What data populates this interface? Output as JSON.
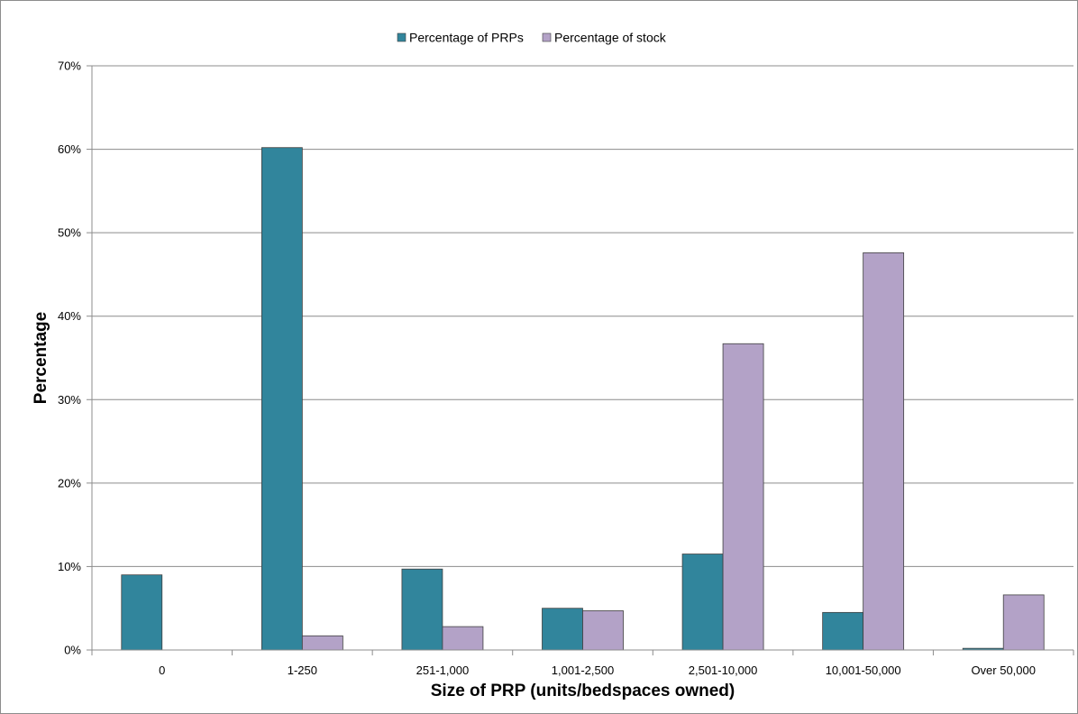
{
  "chart_data": {
    "type": "bar",
    "title": "",
    "xlabel": "Size of PRP (units/bedspaces owned)",
    "ylabel": "Percentage",
    "ylim": [
      0,
      70
    ],
    "y_ticks": [
      0,
      10,
      20,
      30,
      40,
      50,
      60,
      70
    ],
    "y_tick_labels": [
      "0%",
      "10%",
      "20%",
      "30%",
      "40%",
      "50%",
      "60%",
      "70%"
    ],
    "grid": "horizontal",
    "legend_position": "top-center",
    "categories": [
      "0",
      "1-250",
      "251-1,000",
      "1,001-2,500",
      "2,501-10,000",
      "10,001-50,000",
      "Over 50,000"
    ],
    "series": [
      {
        "name": "Percentage of PRPs",
        "color": "#31859c",
        "values": [
          9.0,
          60.2,
          9.7,
          5.0,
          11.5,
          4.5,
          0.2
        ]
      },
      {
        "name": "Percentage of stock",
        "color": "#b3a2c7",
        "values": [
          0.0,
          1.7,
          2.8,
          4.7,
          36.7,
          47.6,
          6.6
        ]
      }
    ]
  }
}
